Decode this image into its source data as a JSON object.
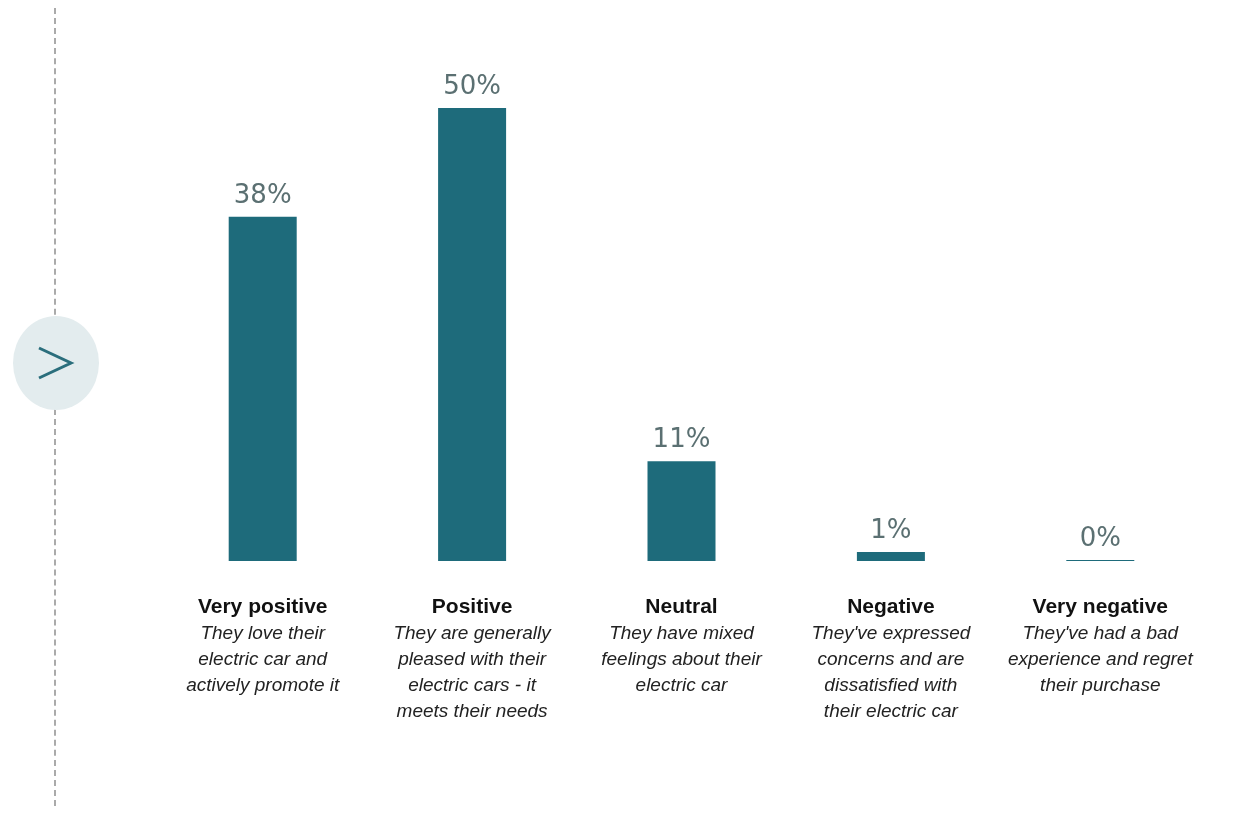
{
  "chart_data": {
    "type": "bar",
    "categories": [
      "Very positive",
      "Positive",
      "Neutral",
      "Negative",
      "Very negative"
    ],
    "values": [
      38,
      50,
      11,
      1,
      0
    ],
    "value_labels": [
      "38%",
      "50%",
      "11%",
      "1%",
      "0%"
    ],
    "color": "#1e6b7b",
    "annotations": [
      "They love their electric car and actively promote it",
      "They are generally pleased with their electric cars - it meets their needs",
      "They have mixed feelings about their electric car",
      "They've expressed concerns and are dissatisfied with their electric car",
      "They've had a bad experience and regret their purchase"
    ]
  }
}
